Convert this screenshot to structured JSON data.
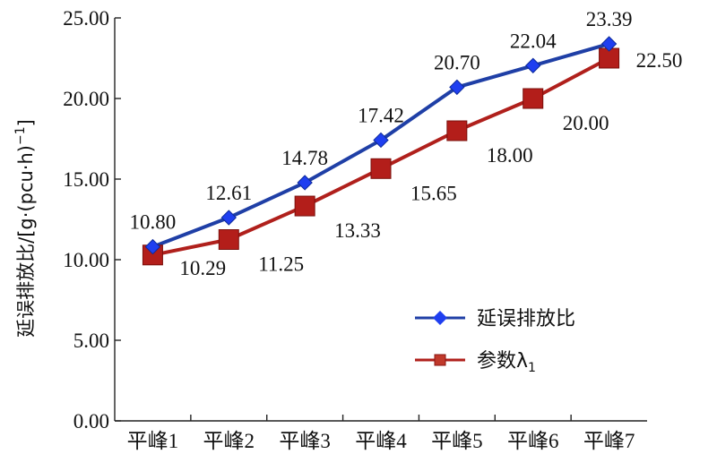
{
  "chart_data": {
    "type": "line",
    "categories": [
      "平峰1",
      "平峰2",
      "平峰3",
      "平峰4",
      "平峰5",
      "平峰6",
      "平峰7"
    ],
    "ylabel_main": "延误排放比/[g·(pcu·h)",
    "ylabel_sup": "−1",
    "ylabel_close": "]",
    "ylim": [
      0,
      25
    ],
    "yticks": [
      "0.00",
      "5.00",
      "10.00",
      "15.00",
      "20.00",
      "25.00"
    ],
    "grid": false,
    "legend_position": "right",
    "series": [
      {
        "name": "延误排放比",
        "marker": "diamond",
        "color": "#1f3fa6",
        "marker_color": "#1f3ff0",
        "values": [
          10.8,
          12.61,
          14.78,
          17.42,
          20.7,
          22.04,
          23.39
        ],
        "labels": [
          "10.80",
          "12.61",
          "14.78",
          "17.42",
          "20.70",
          "22.04",
          "23.39"
        ]
      },
      {
        "name": "参数λ",
        "name_sub": "1",
        "marker": "square",
        "color": "#b0201c",
        "marker_color": "#b31e1a",
        "values": [
          10.29,
          11.25,
          13.33,
          15.65,
          18.0,
          20.0,
          22.5
        ],
        "labels": [
          "10.29",
          "11.25",
          "13.33",
          "15.65",
          "18.00",
          "20.00",
          "22.50"
        ]
      }
    ]
  }
}
